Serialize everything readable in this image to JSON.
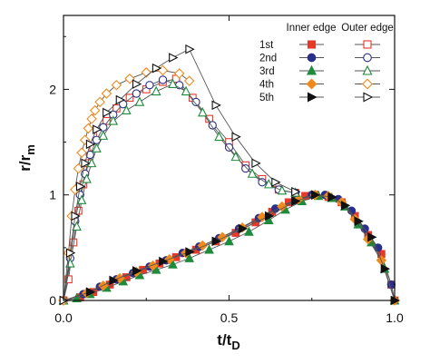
{
  "chart_data": {
    "type": "line",
    "xlim": [
      0.0,
      1.0
    ],
    "ylim": [
      0.0,
      2.7
    ],
    "x_ticks": [
      "0.0",
      "0.5",
      "1.0"
    ],
    "y_ticks": [
      "0",
      "1",
      "2"
    ],
    "x_tick_values": [
      0.0,
      0.5,
      1.0
    ],
    "y_tick_values": [
      0,
      1,
      2
    ],
    "xlabel": {
      "main": "t/t",
      "sub": "D"
    },
    "ylabel": {
      "main": "r/r",
      "sub": "m"
    },
    "grid": false,
    "legend_position": "top-right",
    "legend_headers": [
      "Inner edge",
      "Outer edge"
    ],
    "legend_rows": [
      {
        "label": "1st",
        "color": "#e53a2a",
        "marker": "square"
      },
      {
        "label": "2nd",
        "color": "#2b2f8c",
        "marker": "circle"
      },
      {
        "label": "3rd",
        "color": "#1e8a3c",
        "marker": "triangle"
      },
      {
        "label": "4th",
        "color": "#f08a1c",
        "marker": "diamond"
      },
      {
        "label": "5th",
        "color": "#111111",
        "marker": "right-triangle"
      }
    ],
    "series": [
      {
        "name": "1st",
        "edge": "inner",
        "color": "#e53a2a",
        "marker": "square",
        "filled": true,
        "x": [
          0.0,
          0.05,
          0.09,
          0.14,
          0.19,
          0.24,
          0.29,
          0.34,
          0.4,
          0.46,
          0.52,
          0.58,
          0.63,
          0.68,
          0.73,
          0.76,
          0.8,
          0.84,
          0.88,
          0.92,
          0.96,
          0.99,
          1.0
        ],
        "y": [
          0.0,
          0.03,
          0.08,
          0.15,
          0.22,
          0.29,
          0.35,
          0.41,
          0.48,
          0.56,
          0.64,
          0.74,
          0.84,
          0.93,
          0.99,
          1.0,
          0.98,
          0.93,
          0.8,
          0.62,
          0.44,
          0.15,
          0.0
        ]
      },
      {
        "name": "2nd",
        "edge": "inner",
        "color": "#2b2f8c",
        "marker": "circle",
        "filled": true,
        "x": [
          0.0,
          0.06,
          0.11,
          0.16,
          0.21,
          0.26,
          0.31,
          0.36,
          0.41,
          0.47,
          0.53,
          0.59,
          0.64,
          0.7,
          0.75,
          0.79,
          0.83,
          0.87,
          0.91,
          0.95,
          0.99,
          1.0
        ],
        "y": [
          0.0,
          0.06,
          0.13,
          0.2,
          0.26,
          0.32,
          0.38,
          0.45,
          0.51,
          0.59,
          0.68,
          0.78,
          0.87,
          0.95,
          1.0,
          1.0,
          0.96,
          0.85,
          0.68,
          0.5,
          0.15,
          0.0
        ]
      },
      {
        "name": "3rd",
        "edge": "inner",
        "color": "#1e8a3c",
        "marker": "triangle",
        "filled": true,
        "x": [
          0.0,
          0.04,
          0.08,
          0.13,
          0.18,
          0.23,
          0.28,
          0.33,
          0.38,
          0.44,
          0.5,
          0.56,
          0.62,
          0.67,
          0.72,
          0.77,
          0.81,
          0.85,
          0.89,
          0.93,
          0.97,
          1.0
        ],
        "y": [
          0.0,
          0.02,
          0.06,
          0.12,
          0.18,
          0.24,
          0.29,
          0.34,
          0.4,
          0.48,
          0.56,
          0.65,
          0.76,
          0.86,
          0.94,
          0.99,
          0.97,
          0.89,
          0.72,
          0.55,
          0.3,
          0.0
        ]
      },
      {
        "name": "4th",
        "edge": "inner",
        "color": "#f08a1c",
        "marker": "diamond",
        "filled": true,
        "x": [
          0.0,
          0.07,
          0.12,
          0.17,
          0.22,
          0.27,
          0.32,
          0.37,
          0.42,
          0.48,
          0.54,
          0.6,
          0.66,
          0.71,
          0.76,
          0.8,
          0.84,
          0.88,
          0.92,
          0.96,
          1.0
        ],
        "y": [
          0.0,
          0.07,
          0.14,
          0.21,
          0.27,
          0.33,
          0.39,
          0.45,
          0.52,
          0.6,
          0.69,
          0.79,
          0.89,
          0.96,
          1.0,
          0.99,
          0.93,
          0.77,
          0.58,
          0.38,
          0.0
        ]
      },
      {
        "name": "5th",
        "edge": "inner",
        "color": "#111111",
        "marker": "right-triangle",
        "filled": true,
        "x": [
          0.0,
          0.08,
          0.15,
          0.22,
          0.3,
          0.38,
          0.46,
          0.54,
          0.62,
          0.7,
          0.76,
          0.81,
          0.85,
          0.89,
          0.93,
          0.97,
          1.0
        ],
        "y": [
          0.0,
          0.08,
          0.19,
          0.28,
          0.37,
          0.46,
          0.56,
          0.68,
          0.8,
          0.94,
          1.0,
          0.98,
          0.9,
          0.75,
          0.6,
          0.3,
          0.0
        ]
      },
      {
        "name": "1st",
        "edge": "outer",
        "color": "#e53a2a",
        "marker": "square",
        "filled": false,
        "x": [
          0.0,
          0.015,
          0.03,
          0.045,
          0.06,
          0.075,
          0.09,
          0.11,
          0.13,
          0.16,
          0.2,
          0.25,
          0.3,
          0.34,
          0.39,
          0.44,
          0.5,
          0.55,
          0.6,
          0.65,
          0.7
        ],
        "y": [
          0.0,
          0.2,
          0.55,
          0.85,
          1.1,
          1.3,
          1.45,
          1.58,
          1.7,
          1.82,
          1.92,
          2.0,
          2.07,
          2.1,
          1.92,
          1.72,
          1.5,
          1.28,
          1.15,
          1.05,
          1.02
        ]
      },
      {
        "name": "2nd",
        "edge": "outer",
        "color": "#2b2f8c",
        "marker": "circle",
        "filled": false,
        "x": [
          0.0,
          0.02,
          0.035,
          0.05,
          0.065,
          0.08,
          0.1,
          0.12,
          0.15,
          0.18,
          0.22,
          0.26,
          0.3,
          0.35,
          0.4,
          0.45,
          0.5,
          0.55,
          0.6,
          0.65,
          0.7
        ],
        "y": [
          0.0,
          0.4,
          0.75,
          1.0,
          1.2,
          1.38,
          1.52,
          1.64,
          1.76,
          1.86,
          1.96,
          2.04,
          2.09,
          2.04,
          1.88,
          1.66,
          1.45,
          1.25,
          1.12,
          1.05,
          1.02
        ]
      },
      {
        "name": "3rd",
        "edge": "outer",
        "color": "#1e8a3c",
        "marker": "triangle",
        "filled": false,
        "x": [
          0.0,
          0.02,
          0.04,
          0.055,
          0.07,
          0.085,
          0.1,
          0.12,
          0.15,
          0.19,
          0.23,
          0.28,
          0.33,
          0.37,
          0.42,
          0.47,
          0.52,
          0.57,
          0.62,
          0.66,
          0.7
        ],
        "y": [
          0.0,
          0.35,
          0.7,
          0.95,
          1.15,
          1.3,
          1.44,
          1.56,
          1.7,
          1.8,
          1.88,
          1.98,
          2.05,
          1.98,
          1.78,
          1.55,
          1.36,
          1.2,
          1.1,
          1.04,
          1.02
        ]
      },
      {
        "name": "4th",
        "edge": "outer",
        "color": "#f08a1c",
        "marker": "diamond",
        "filled": false,
        "x": [
          0.0,
          0.015,
          0.025,
          0.035,
          0.045,
          0.055,
          0.065,
          0.075,
          0.085,
          0.095,
          0.11,
          0.13,
          0.16,
          0.2,
          0.25,
          0.3,
          0.35,
          0.38
        ],
        "y": [
          0.0,
          0.45,
          0.8,
          1.05,
          1.25,
          1.4,
          1.52,
          1.63,
          1.72,
          1.8,
          1.88,
          1.96,
          2.04,
          2.1,
          2.16,
          2.18,
          2.15,
          2.08
        ]
      },
      {
        "name": "5th",
        "edge": "outer",
        "color": "#111111",
        "marker": "right-triangle",
        "filled": false,
        "x": [
          0.0,
          0.02,
          0.035,
          0.05,
          0.065,
          0.08,
          0.1,
          0.13,
          0.17,
          0.22,
          0.28,
          0.33,
          0.38,
          0.46,
          0.52,
          0.58,
          0.64,
          0.7
        ],
        "y": [
          0.0,
          0.45,
          0.8,
          1.08,
          1.3,
          1.48,
          1.62,
          1.78,
          1.9,
          2.05,
          2.2,
          2.3,
          2.38,
          1.85,
          1.55,
          1.3,
          1.12,
          1.03
        ]
      }
    ]
  }
}
